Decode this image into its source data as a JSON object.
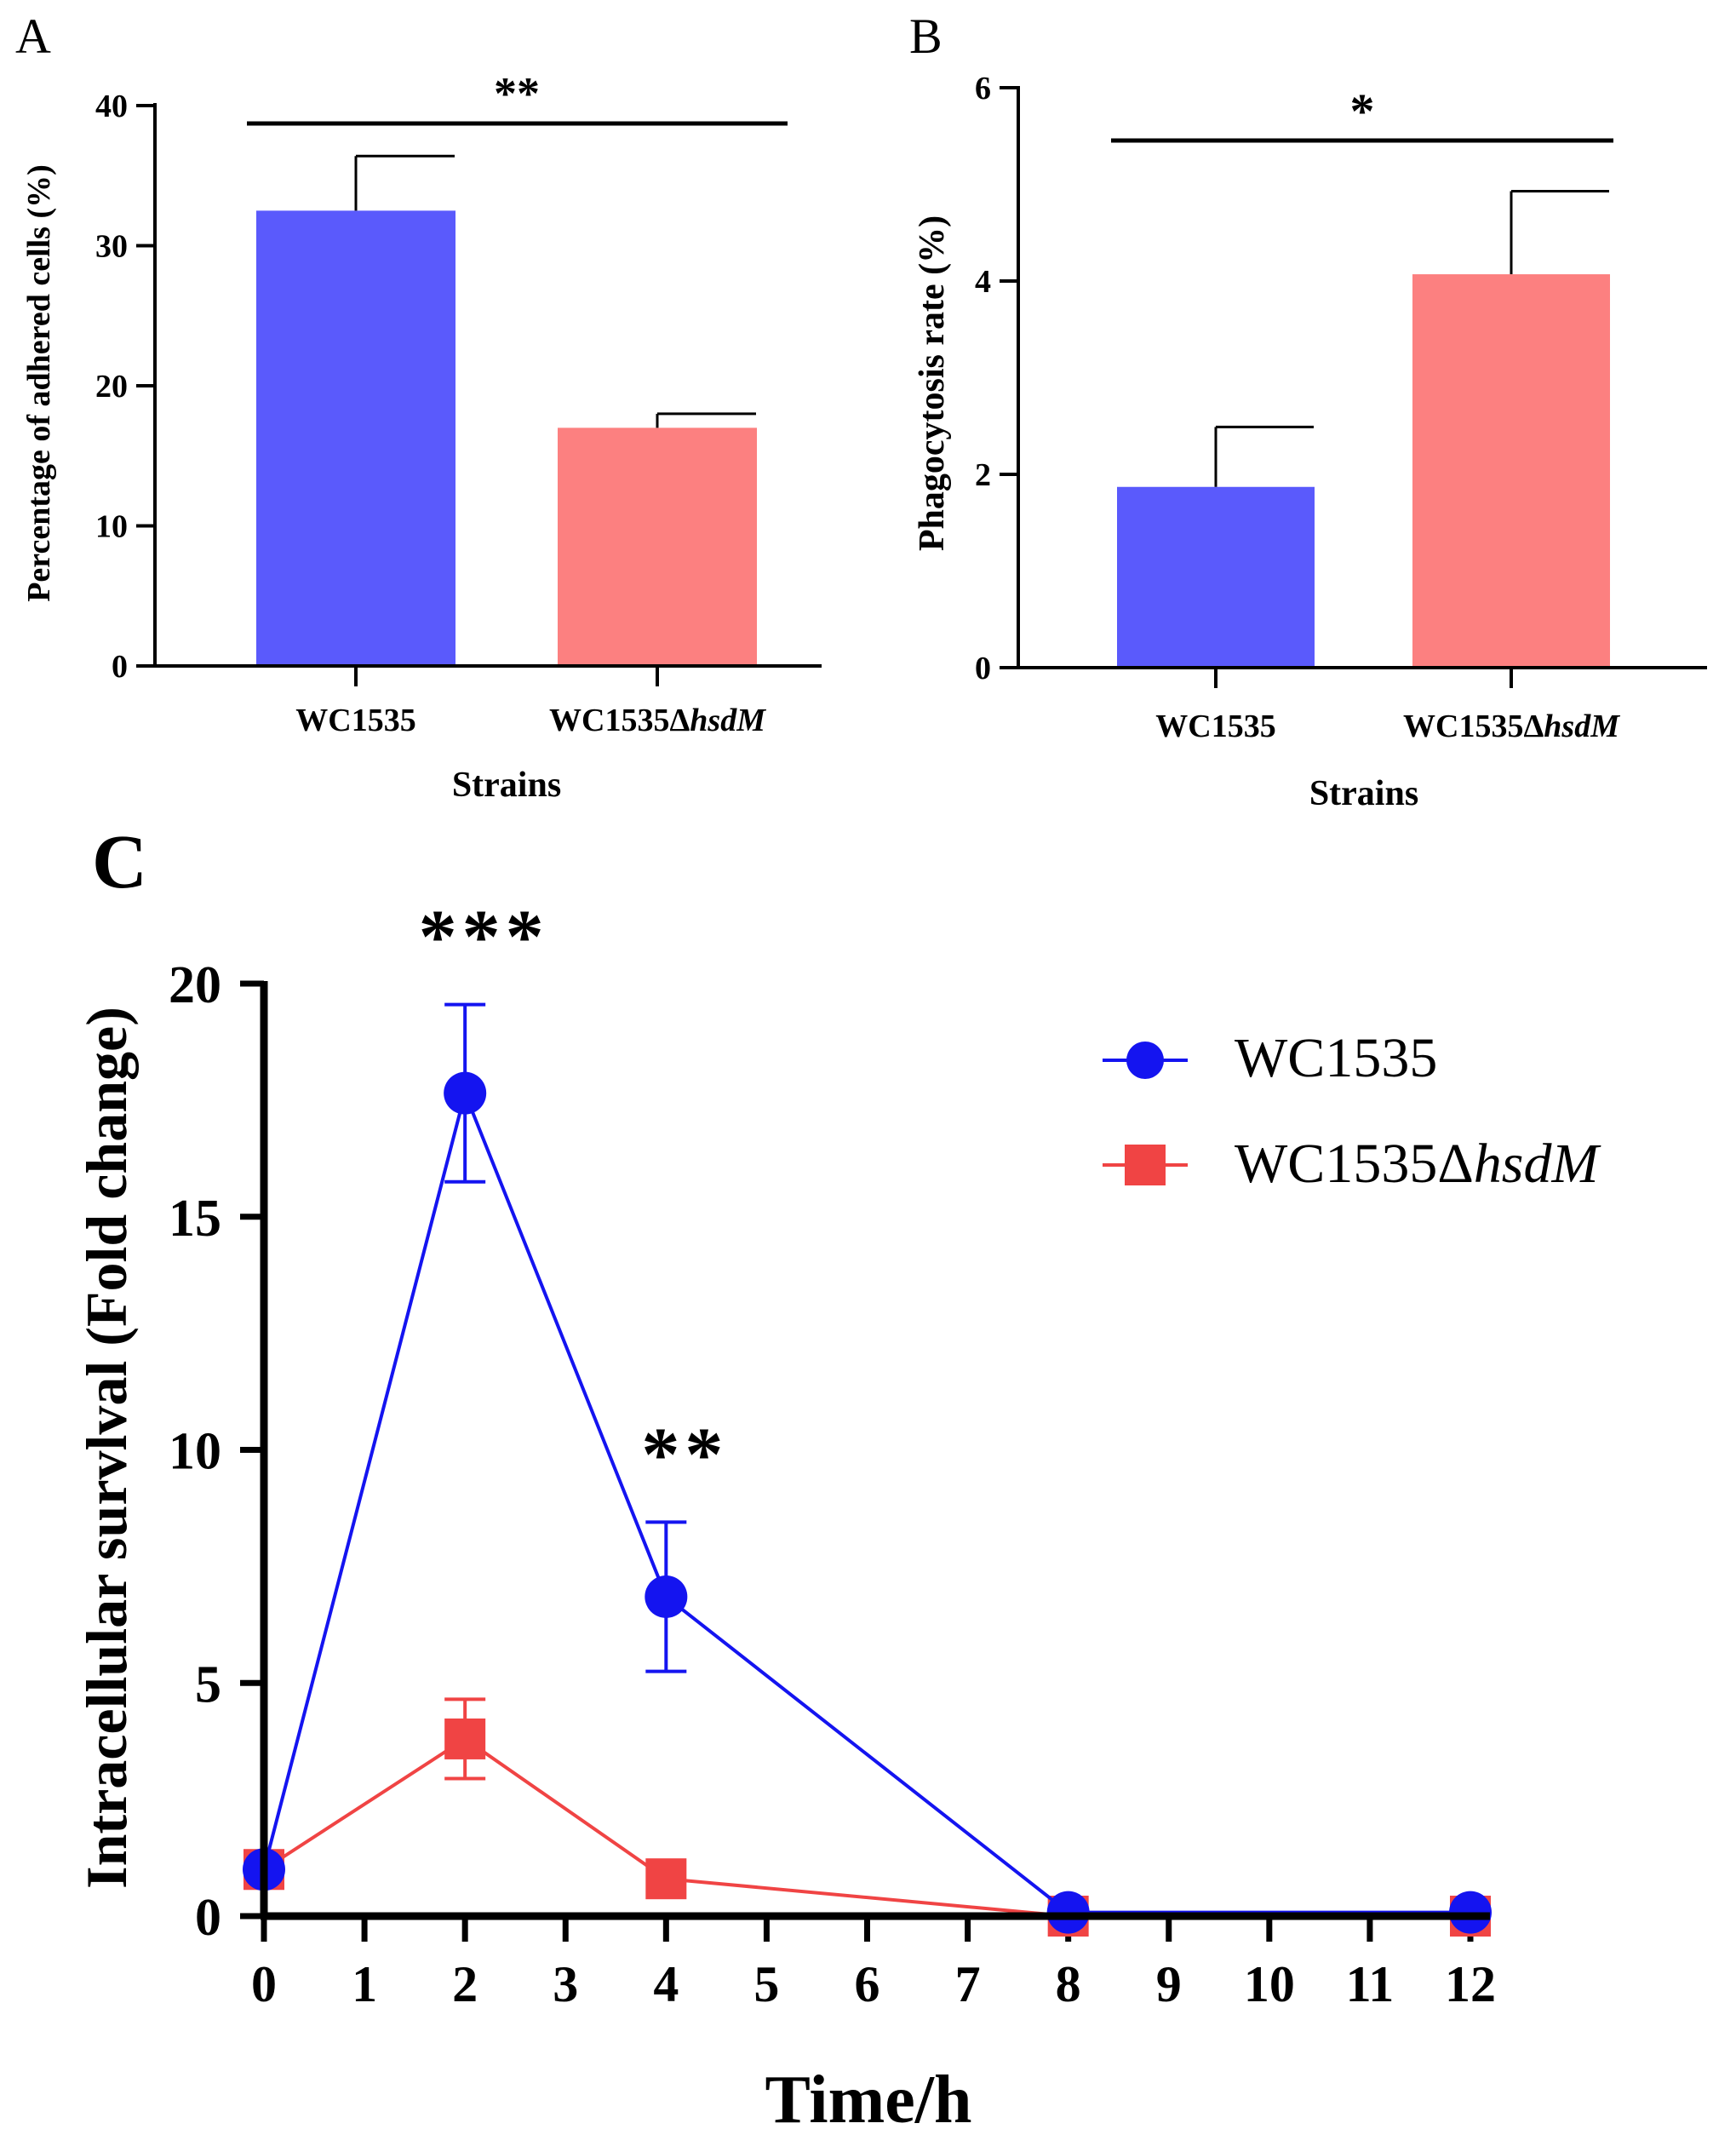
{
  "panels": {
    "a": {
      "letter": "A"
    },
    "b": {
      "letter": "B"
    },
    "c": {
      "letter": "C"
    }
  },
  "colors": {
    "wt_bar": "#5A5AFC",
    "mut_bar": "#FC8080",
    "wt_line": "#1414F0",
    "mut_line": "#F04444",
    "axis": "#000000"
  },
  "chart_data": [
    {
      "id": "A",
      "type": "bar",
      "categories": [
        "WC1535",
        "WC1535ΔhsdM"
      ],
      "category_parts": [
        {
          "main": "WC1535",
          "italic": ""
        },
        {
          "main": "WC1535Δ",
          "italic": "hsdM"
        }
      ],
      "values": [
        32.5,
        17.0
      ],
      "errors": [
        3.9,
        1.0
      ],
      "xlabel": "Strains",
      "ylabel": "Percentage of adhered cells (%)",
      "ylim": [
        0,
        40
      ],
      "yticks": [
        "0",
        "10",
        "20",
        "30",
        "40"
      ],
      "significance": "**"
    },
    {
      "id": "B",
      "type": "bar",
      "categories": [
        "WC1535",
        "WC1535ΔhsdM"
      ],
      "category_parts": [
        {
          "main": "WC1535",
          "italic": ""
        },
        {
          "main": "WC1535Δ",
          "italic": "hsdM"
        }
      ],
      "values": [
        1.87,
        4.07
      ],
      "errors": [
        0.62,
        0.86
      ],
      "xlabel": "Strains",
      "ylabel": "Phagocytosis rate (%)",
      "ylim": [
        0,
        6
      ],
      "yticks": [
        "0",
        "2",
        "4",
        "6"
      ],
      "significance": "*"
    },
    {
      "id": "C",
      "type": "line",
      "xlabel": "Time/h",
      "ylabel": "Intracellular survlval (Fold change)",
      "xlim": [
        0,
        12
      ],
      "ylim": [
        0,
        20
      ],
      "xticks": [
        "0",
        "1",
        "2",
        "3",
        "4",
        "5",
        "6",
        "7",
        "8",
        "9",
        "10",
        "11",
        "12"
      ],
      "yticks": [
        "0",
        "5",
        "10",
        "15",
        "20"
      ],
      "series": [
        {
          "name": "WC1535",
          "legend_main": "WC1535",
          "legend_italic": "",
          "marker": "circle",
          "x": [
            0,
            2,
            4,
            8,
            12
          ],
          "y": [
            1.0,
            17.65,
            6.85,
            0.08,
            0.08
          ],
          "err": [
            0,
            1.9,
            1.6,
            0,
            0
          ]
        },
        {
          "name": "WC1535ΔhsdM",
          "legend_main": "WC1535Δ",
          "legend_italic": "hsdM",
          "marker": "square",
          "x": [
            0,
            2,
            4,
            8,
            12
          ],
          "y": [
            1.0,
            3.8,
            0.8,
            0.0,
            0.0
          ],
          "err": [
            0,
            0.85,
            0,
            0,
            0
          ]
        }
      ],
      "annotations": [
        {
          "x": 2,
          "text": "***"
        },
        {
          "x": 4,
          "text": "**"
        }
      ],
      "legend": "top-right"
    }
  ]
}
